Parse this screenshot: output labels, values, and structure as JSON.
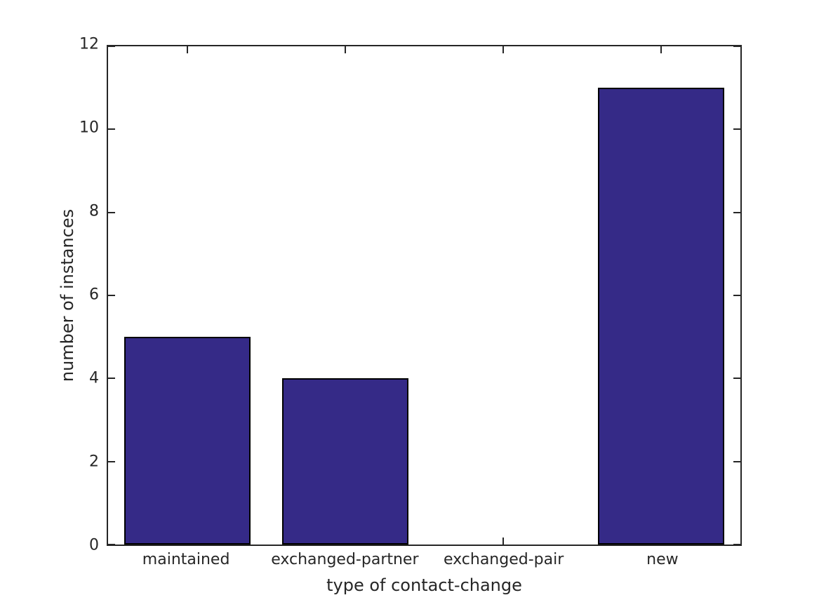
{
  "chart_data": {
    "type": "bar",
    "title": "",
    "xlabel": "type of contact-change",
    "ylabel": "number of instances",
    "categories": [
      "maintained",
      "exchanged-partner",
      "exchanged-pair",
      "new"
    ],
    "values": [
      5,
      4,
      0,
      11
    ],
    "ylim": [
      0,
      12
    ],
    "yticks": [
      0,
      2,
      4,
      6,
      8,
      10,
      12
    ],
    "grid": false,
    "legend": null,
    "box": true,
    "tick_direction": "in",
    "bar_width_fraction": 0.8,
    "colors": {
      "bar_fill": "#352A87",
      "bar_edge": "#000000",
      "axis": "#262626",
      "text": "#262626",
      "background": "#ffffff"
    }
  }
}
